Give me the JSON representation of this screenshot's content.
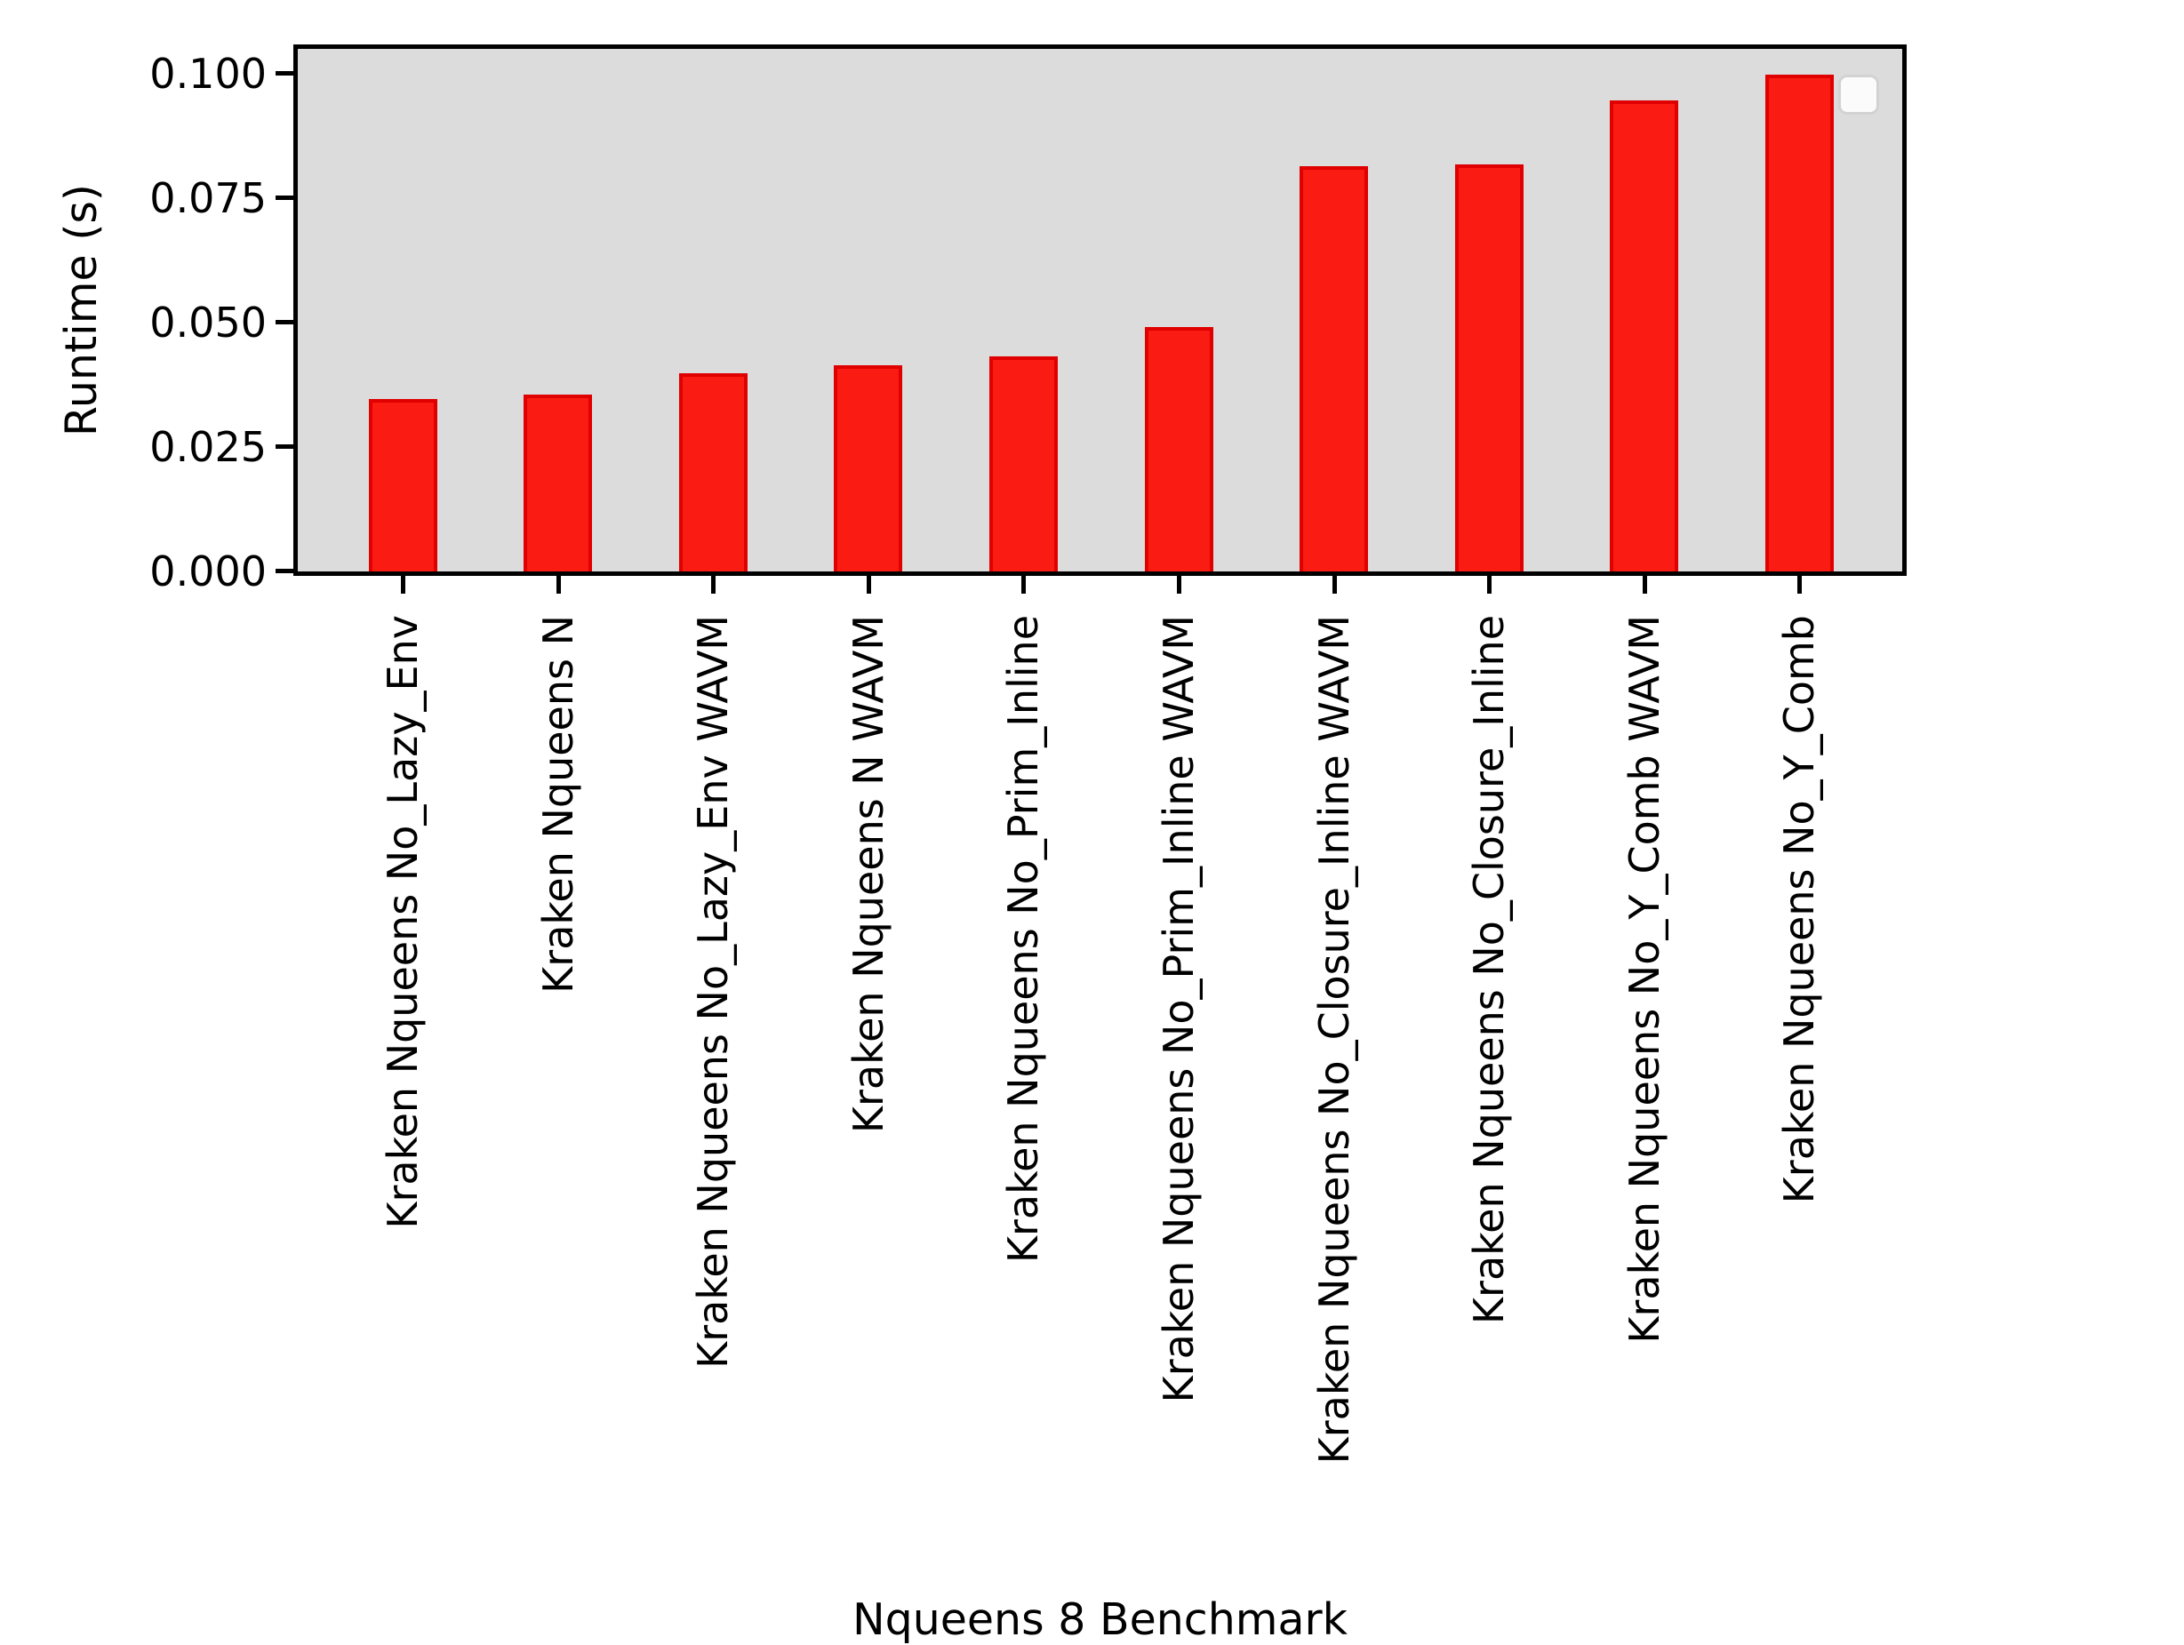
{
  "chart_data": {
    "type": "bar",
    "title": "",
    "xlabel": "Nqueens 8 Benchmark",
    "ylabel": "Runtime (s)",
    "categories": [
      "Kraken Nqueens No_Lazy_Env",
      "Kraken Nqueens N",
      "Kraken Nqueens No_Lazy_Env WAVM",
      "Kraken Nqueens N WAVM",
      "Kraken Nqueens No_Prim_Inline",
      "Kraken Nqueens No_Prim_Inline WAVM",
      "Kraken Nqueens No_Closure_Inline WAVM",
      "Kraken Nqueens No_Closure_Inline",
      "Kraken Nqueens No_Y_Comb WAVM",
      "Kraken Nqueens No_Y_Comb"
    ],
    "values": [
      0.0346,
      0.0356,
      0.0398,
      0.0415,
      0.0432,
      0.0491,
      0.0815,
      0.0818,
      0.0946,
      0.0998
    ],
    "ylim": [
      0,
      0.1048
    ],
    "ytick_values": [
      0.0,
      0.025,
      0.05,
      0.075,
      0.1
    ],
    "ytick_labels": [
      "0.000",
      "0.025",
      "0.050",
      "0.075",
      "0.100"
    ],
    "grid": false,
    "legend": {
      "visible": true,
      "entries": [],
      "position": "upper right"
    },
    "colors": {
      "bar_fill": "#fa1b13",
      "bar_edge": "#e00000",
      "plot_background": "#dcdcdc",
      "figure_background": "#ffffff",
      "spine": "#000000",
      "text": "#000000"
    }
  }
}
